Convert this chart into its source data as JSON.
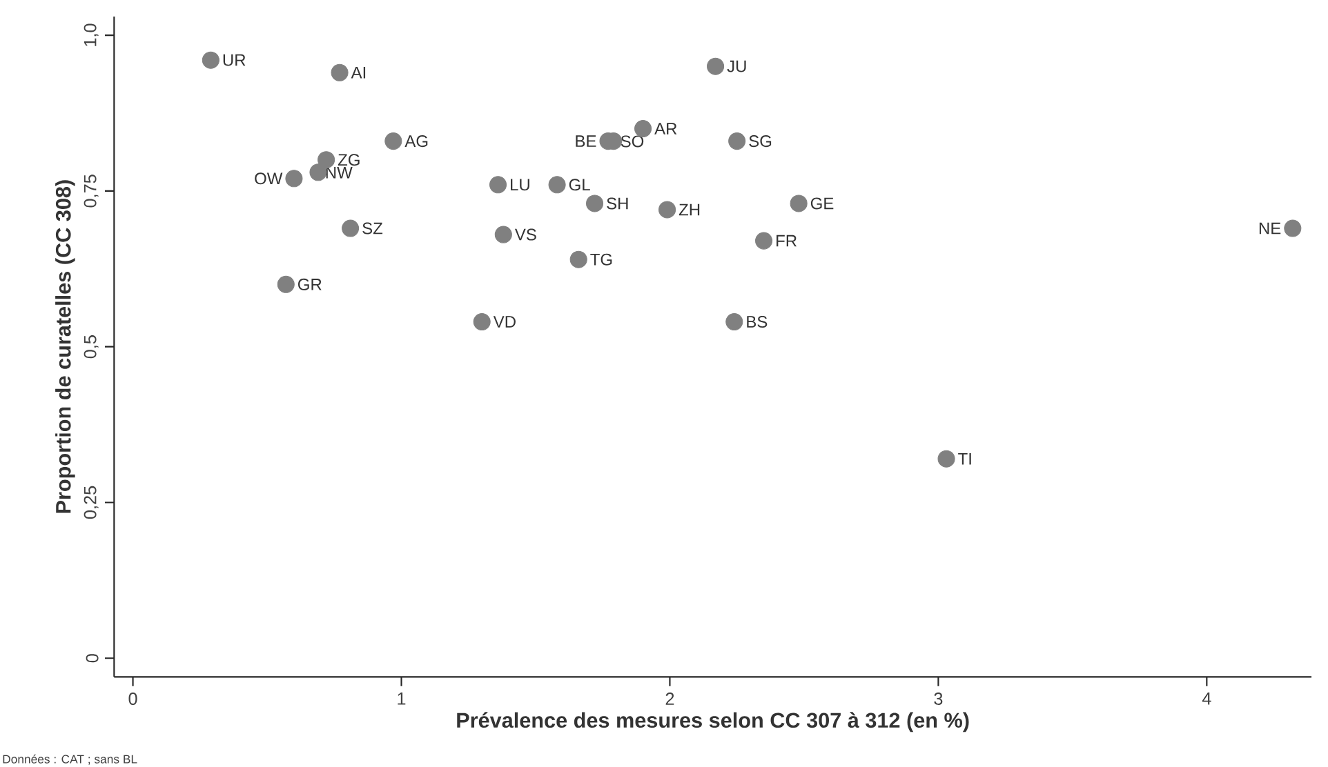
{
  "chart_data": {
    "type": "scatter",
    "xlabel": "Prévalence des mesures selon CC 307 à 312 (en %)",
    "ylabel": "Proportion de curatelles (CC 308)",
    "color": "#808080",
    "marker": "circle",
    "x": [
      0.29,
      0.77,
      0.72,
      0.69,
      0.6,
      0.97,
      1.36,
      1.58,
      0.81,
      1.38,
      0.57,
      1.3,
      2.17,
      1.9,
      1.77,
      1.79,
      2.25,
      1.72,
      1.99,
      2.48,
      2.35,
      1.66,
      2.24,
      4.32,
      3.03
    ],
    "values": [
      0.96,
      0.94,
      0.8,
      0.78,
      0.77,
      0.83,
      0.76,
      0.76,
      0.69,
      0.68,
      0.6,
      0.54,
      0.95,
      0.85,
      0.83,
      0.83,
      0.83,
      0.73,
      0.72,
      0.73,
      0.67,
      0.64,
      0.54,
      0.69,
      0.32
    ],
    "xlim": [
      -0.07,
      4.39
    ],
    "ylim": [
      -0.03,
      1.03
    ],
    "xticks": [
      0,
      1,
      2,
      3,
      4
    ],
    "yticks": [
      0,
      {
        "value": 0.25,
        "label": "0,25"
      },
      {
        "value": 0.5,
        "label": "0,5"
      },
      {
        "value": 0.75,
        "label": "0,75"
      },
      {
        "value": 1,
        "label": "1,0"
      }
    ],
    "annotations": [
      {
        "text": "UR",
        "x": 0.29,
        "y": 0.96
      },
      {
        "text": "AI",
        "x": 0.77,
        "y": 0.94
      },
      {
        "text": "ZG",
        "x": 0.72,
        "y": 0.8
      },
      {
        "text": "NW",
        "x": 0.69,
        "y": 0.78
      },
      {
        "text": "OW",
        "x": 0.6,
        "y": 0.77
      },
      {
        "text": "AG",
        "x": 0.97,
        "y": 0.83
      },
      {
        "text": "LU",
        "x": 1.36,
        "y": 0.76
      },
      {
        "text": "GL",
        "x": 1.58,
        "y": 0.76
      },
      {
        "text": "SZ",
        "x": 0.81,
        "y": 0.69
      },
      {
        "text": "VS",
        "x": 1.38,
        "y": 0.68
      },
      {
        "text": "GR",
        "x": 0.57,
        "y": 0.6
      },
      {
        "text": "VD",
        "x": 1.3,
        "y": 0.54
      },
      {
        "text": "JU",
        "x": 2.17,
        "y": 0.95
      },
      {
        "text": "AR",
        "x": 1.9,
        "y": 0.85
      },
      {
        "text": "BE",
        "x": 1.77,
        "y": 0.83
      },
      {
        "text": "SO",
        "x": 1.79,
        "y": 0.83
      },
      {
        "text": "SG",
        "x": 2.25,
        "y": 0.83
      },
      {
        "text": "SH",
        "x": 1.72,
        "y": 0.73
      },
      {
        "text": "ZH",
        "x": 1.99,
        "y": 0.72
      },
      {
        "text": "GE",
        "x": 2.48,
        "y": 0.73
      },
      {
        "text": "FR",
        "x": 2.35,
        "y": 0.67
      },
      {
        "text": "TG",
        "x": 1.66,
        "y": 0.64
      },
      {
        "text": "BS",
        "x": 2.24,
        "y": 0.54
      },
      {
        "text": "NE",
        "x": 4.32,
        "y": 0.69
      },
      {
        "text": "TI",
        "x": 3.03,
        "y": 0.32
      },
      "Données : CAT ; sans BL"
    ]
  }
}
